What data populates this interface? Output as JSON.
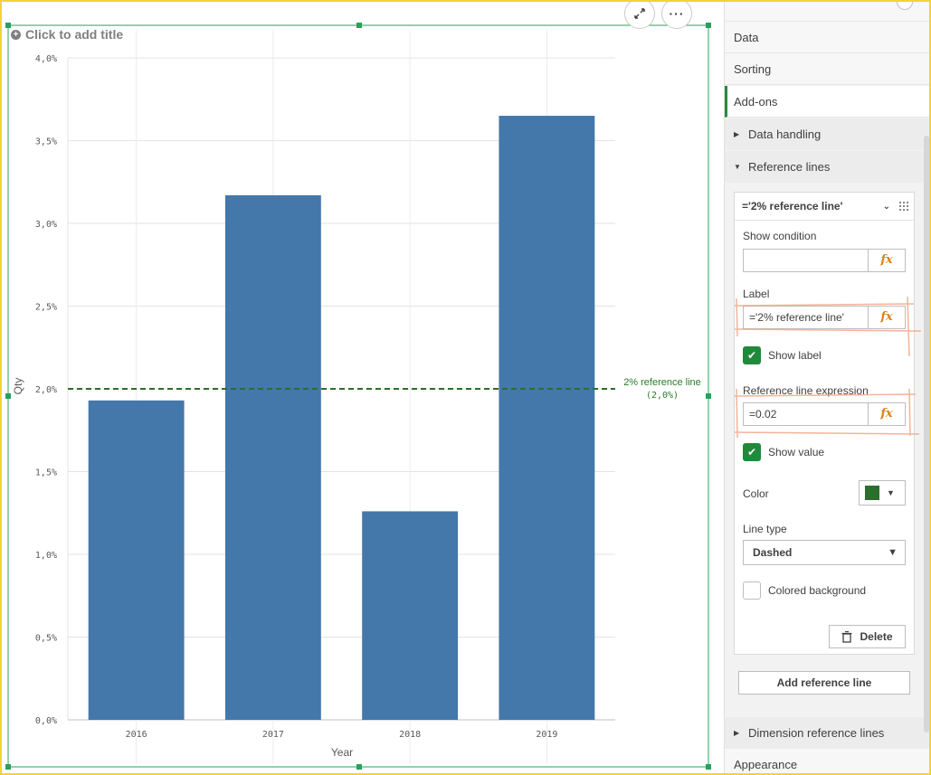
{
  "chart_title_placeholder": "Click to add title",
  "icons": {
    "add_title": "plus-circle-icon",
    "expand": "expand-icon",
    "more": "more-options-icon",
    "fx": "function-icon",
    "delete": "trash-icon"
  },
  "chart_data": {
    "type": "bar",
    "categories": [
      "2016",
      "2017",
      "2018",
      "2019"
    ],
    "values": [
      0.0193,
      0.0317,
      0.0126,
      0.0365
    ],
    "xlabel": "Year",
    "ylabel": "Qty",
    "ylim": [
      0,
      0.04
    ],
    "yticks": [
      "0,0%",
      "0,5%",
      "1,0%",
      "1,5%",
      "2,0%",
      "2,5%",
      "3,0%",
      "3,5%",
      "4,0%"
    ],
    "bar_color": "#4477aa",
    "grid": true,
    "reference_line": {
      "value": 0.02,
      "label": "2% reference line",
      "value_label": "(2,0%)",
      "color": "#2c6e2c",
      "style": "dashed"
    }
  },
  "panel": {
    "nav": {
      "data": "Data",
      "sorting": "Sorting",
      "addons": "Add-ons",
      "appearance": "Appearance"
    },
    "sections": {
      "data_handling": "Data handling",
      "reference_lines": "Reference lines",
      "dimension_reference_lines": "Dimension reference lines"
    },
    "ref_card": {
      "title": "='2% reference line'",
      "show_condition_label": "Show condition",
      "show_condition_value": "",
      "label_label": "Label",
      "label_value": "='2% reference line'",
      "show_label": "Show label",
      "expression_label": "Reference line expression",
      "expression_value": "=0.02",
      "show_value": "Show value",
      "color_label": "Color",
      "color_value": "#2c6e2c",
      "line_type_label": "Line type",
      "line_type_value": "Dashed",
      "colored_background": "Colored background",
      "delete": "Delete",
      "fx": "fx"
    },
    "add_reference_line": "Add reference line"
  }
}
